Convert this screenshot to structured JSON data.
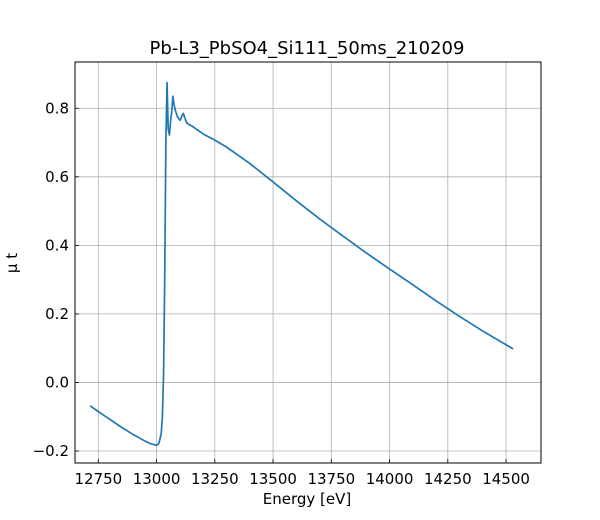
{
  "chart_data": {
    "type": "line",
    "title": "Pb-L3_PbSO4_Si111_50ms_210209",
    "xlabel": "Energy [eV]",
    "ylabel": "μ t",
    "xlim": [
      12650,
      14650
    ],
    "ylim": [
      -0.235,
      0.935
    ],
    "xticks": [
      12750,
      13000,
      13250,
      13500,
      13750,
      14000,
      14250,
      14500
    ],
    "yticks": [
      -0.2,
      0.0,
      0.2,
      0.4,
      0.6,
      0.8
    ],
    "grid": true,
    "tick_direction": "in",
    "series_color": "#1f77b4",
    "series": [
      {
        "x": [
          12715,
          12750,
          12800,
          12850,
          12900,
          12950,
          12980,
          13000,
          13010,
          13020,
          13025,
          13030,
          13035,
          13040,
          13045,
          13050,
          13055,
          13060,
          13065,
          13070,
          13075,
          13080,
          13085,
          13090,
          13095,
          13100,
          13105,
          13110,
          13115,
          13120,
          13125,
          13130,
          13140,
          13150,
          13175,
          13200,
          13250,
          13300,
          13400,
          13500,
          13600,
          13700,
          13800,
          13900,
          14000,
          14100,
          14200,
          14300,
          14400,
          14500,
          14530
        ],
        "y": [
          -0.068,
          -0.085,
          -0.108,
          -0.131,
          -0.152,
          -0.171,
          -0.18,
          -0.183,
          -0.178,
          -0.15,
          -0.1,
          0.02,
          0.3,
          0.7,
          0.875,
          0.74,
          0.722,
          0.76,
          0.79,
          0.835,
          0.812,
          0.795,
          0.785,
          0.775,
          0.77,
          0.765,
          0.77,
          0.78,
          0.785,
          0.775,
          0.765,
          0.757,
          0.752,
          0.749,
          0.737,
          0.725,
          0.707,
          0.687,
          0.639,
          0.585,
          0.53,
          0.477,
          0.427,
          0.378,
          0.331,
          0.285,
          0.238,
          0.193,
          0.15,
          0.11,
          0.098
        ]
      }
    ]
  }
}
